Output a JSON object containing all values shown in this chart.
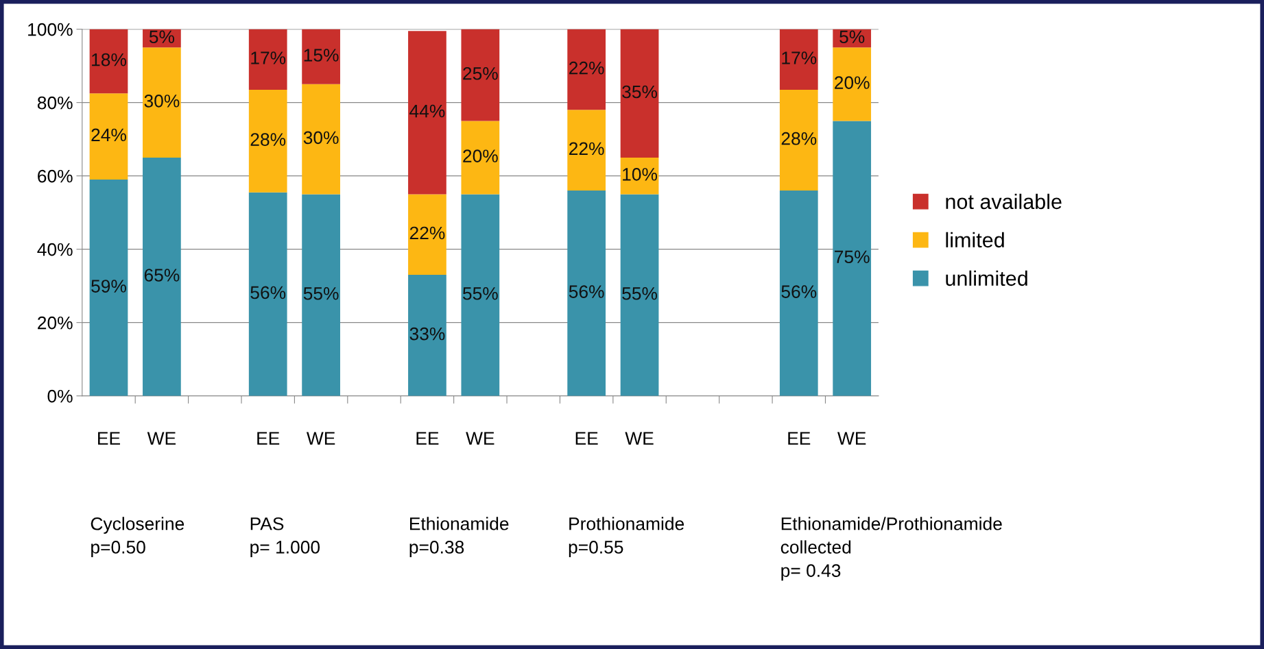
{
  "chart_data": {
    "type": "bar",
    "stacked": true,
    "grid": "y",
    "legend": "right",
    "categories": [
      "EE",
      "WE",
      null,
      "EE",
      "WE",
      null,
      "EE",
      "WE",
      null,
      "EE",
      "WE",
      null,
      null,
      "EE",
      "WE"
    ],
    "series": [
      {
        "name": "unlimited",
        "color": "#3a93aa",
        "values": [
          59,
          65,
          null,
          55.5,
          55,
          null,
          33,
          55,
          null,
          56,
          55,
          null,
          null,
          56,
          75
        ],
        "value_labels": [
          "59%",
          "65%",
          null,
          "56%",
          "55%",
          null,
          "33%",
          "55%",
          null,
          "56%",
          "55%",
          null,
          null,
          "56%",
          "75%"
        ]
      },
      {
        "name": "limited",
        "color": "#fdb713",
        "values": [
          23.5,
          30,
          null,
          28,
          30,
          null,
          22,
          20,
          null,
          22,
          10,
          null,
          null,
          27.5,
          20
        ],
        "value_labels": [
          "24%",
          "30%",
          null,
          "28%",
          "30%",
          null,
          "22%",
          "20%",
          null,
          "22%",
          "10%",
          null,
          null,
          "28%",
          "20%"
        ]
      },
      {
        "name": "not available",
        "color": "#c9302c",
        "values": [
          17.5,
          5,
          null,
          16.5,
          15,
          null,
          44.5,
          25,
          null,
          22,
          35,
          null,
          null,
          16.5,
          5
        ],
        "value_labels": [
          "18%",
          "5%",
          null,
          "17%",
          "15%",
          null,
          "44%",
          "25%",
          null,
          "22%",
          "35%",
          null,
          null,
          "17%",
          "5%"
        ]
      }
    ],
    "ylim": [
      0,
      100
    ],
    "yticks": [
      {
        "value": 0,
        "label": "0%"
      },
      {
        "value": 20,
        "label": "20%"
      },
      {
        "value": 40,
        "label": "40%"
      },
      {
        "value": 60,
        "label": "60%"
      },
      {
        "value": 80,
        "label": "80%"
      },
      {
        "value": 100,
        "label": "100%"
      }
    ],
    "annotations": [
      "Cycloserine\np=0.50",
      "PAS\np= 1.000",
      "Ethionamide\np=0.38",
      "Prothionamide\np=0.55",
      "Ethionamide/Prothionamide\ncollected\np= 0.43"
    ]
  }
}
